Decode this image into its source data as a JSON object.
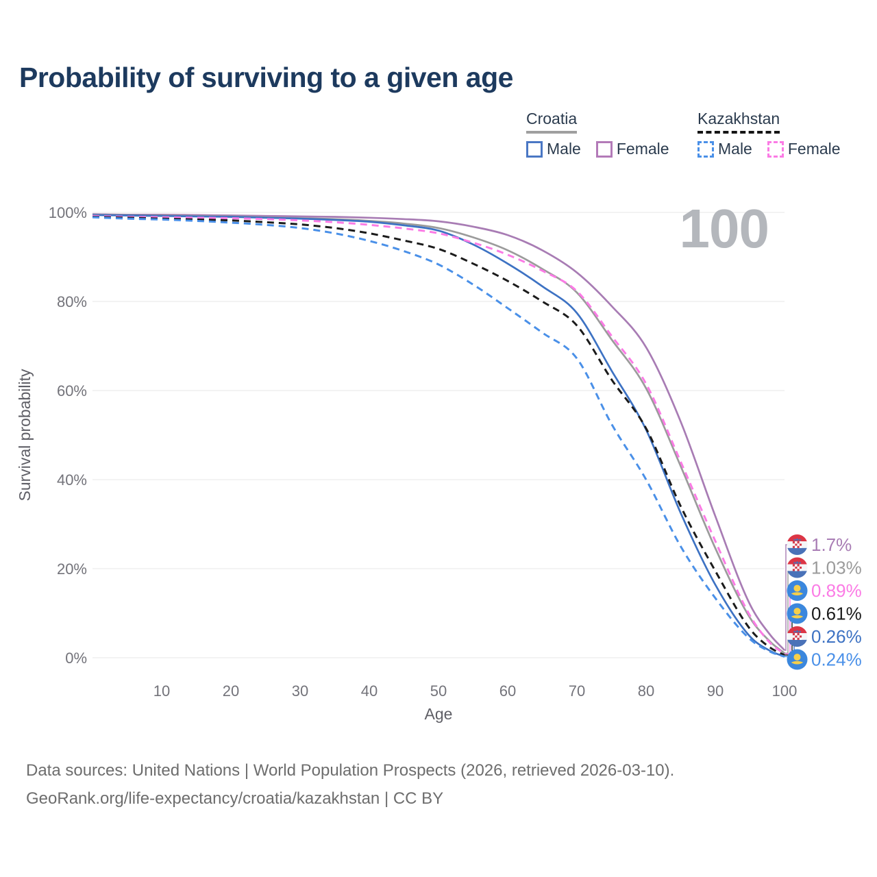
{
  "title": "Probability of surviving to a given age",
  "watermark": "100",
  "legend": {
    "groups": [
      {
        "name": "Croatia",
        "underline_style": "solid",
        "underline_color": "#9f9f9f",
        "items": [
          {
            "label": "Male",
            "color": "#4a77c4",
            "line_style": "solid"
          },
          {
            "label": "Female",
            "color": "#b37ab8",
            "line_style": "solid"
          }
        ]
      },
      {
        "name": "Kazakhstan",
        "underline_style": "dashed",
        "underline_color": "#151515",
        "items": [
          {
            "label": "Male",
            "color": "#4a90e8",
            "line_style": "dashed"
          },
          {
            "label": "Female",
            "color": "#fb7be5",
            "line_style": "dashed"
          }
        ]
      }
    ]
  },
  "chart_data": {
    "type": "line",
    "title": "Probability of surviving to a given age",
    "xlabel": "Age",
    "ylabel": "Survival probability",
    "xlim": [
      0,
      100
    ],
    "ylim": [
      0,
      100
    ],
    "grid": true,
    "x_ticks": [
      "10",
      "20",
      "30",
      "40",
      "50",
      "60",
      "70",
      "80",
      "90",
      "100"
    ],
    "y_ticks": [
      {
        "value": 100,
        "label": "100%"
      },
      {
        "value": 80,
        "label": "80%"
      },
      {
        "value": 60,
        "label": "60%"
      },
      {
        "value": 40,
        "label": "40%"
      },
      {
        "value": 20,
        "label": "20%"
      },
      {
        "value": 0,
        "label": "0%"
      }
    ],
    "x": [
      0,
      5,
      10,
      15,
      20,
      25,
      30,
      35,
      40,
      45,
      50,
      55,
      60,
      65,
      70,
      75,
      80,
      85,
      90,
      95,
      98,
      100
    ],
    "series": [
      {
        "name": "Croatia Female",
        "country": "croatia",
        "sex": "female",
        "color": "#a87cb4",
        "dashed": false,
        "end_label": "1.7%",
        "values": [
          99.6,
          99.5,
          99.5,
          99.4,
          99.3,
          99.2,
          99.1,
          99.0,
          98.8,
          98.5,
          98.0,
          96.8,
          94.9,
          91.5,
          86.5,
          79.0,
          69.7,
          53.0,
          31.8,
          12.0,
          5.0,
          1.7
        ]
      },
      {
        "name": "Croatia",
        "country": "croatia",
        "sex": "all",
        "color": "#9b9b9b",
        "dashed": false,
        "end_label": "1.03%",
        "values": [
          99.5,
          99.4,
          99.3,
          99.2,
          99.1,
          98.9,
          98.7,
          98.5,
          98.1,
          97.5,
          96.5,
          94.4,
          91.5,
          87.3,
          82.0,
          71.5,
          60.5,
          43.0,
          24.6,
          9.0,
          3.5,
          1.03
        ]
      },
      {
        "name": "Kazakhstan Female",
        "country": "kazakhstan",
        "sex": "female",
        "color": "#fb7be5",
        "dashed": true,
        "end_label": "0.89%",
        "values": [
          99.2,
          99.0,
          98.9,
          98.8,
          98.7,
          98.5,
          98.2,
          97.8,
          97.2,
          96.4,
          95.3,
          93.2,
          90.5,
          86.9,
          82.3,
          72.3,
          61.5,
          44.0,
          26.2,
          9.5,
          3.2,
          0.89
        ]
      },
      {
        "name": "Kazakhstan",
        "country": "kazakhstan",
        "sex": "all",
        "color": "#1b1b1b",
        "dashed": true,
        "end_label": "0.61%",
        "values": [
          99.0,
          98.8,
          98.6,
          98.4,
          98.2,
          97.8,
          97.3,
          96.5,
          95.3,
          93.7,
          91.8,
          88.5,
          84.6,
          80.0,
          74.6,
          62.5,
          51.5,
          34.0,
          19.5,
          6.5,
          2.2,
          0.61
        ]
      },
      {
        "name": "Croatia Male",
        "country": "croatia",
        "sex": "male",
        "color": "#3d72c3",
        "dashed": false,
        "end_label": "0.26%",
        "values": [
          99.4,
          99.3,
          99.2,
          99.1,
          99.0,
          98.8,
          98.6,
          98.3,
          97.9,
          97.1,
          95.9,
          92.8,
          88.5,
          83.4,
          77.4,
          64.5,
          51.2,
          32.5,
          16.4,
          4.8,
          1.5,
          0.26
        ]
      },
      {
        "name": "Kazakhstan Male",
        "country": "kazakhstan",
        "sex": "male",
        "color": "#4a90e8",
        "dashed": true,
        "end_label": "0.24%",
        "values": [
          98.9,
          98.6,
          98.4,
          98.1,
          97.7,
          97.2,
          96.5,
          95.3,
          93.6,
          91.3,
          88.3,
          83.8,
          78.5,
          73.0,
          67.2,
          52.5,
          40.0,
          25.0,
          13.4,
          4.2,
          1.3,
          0.24
        ]
      }
    ]
  },
  "footer": {
    "line1": "Data sources: United Nations | World Population Prospects (2026, retrieved 2026-03-10).",
    "line2": "GeoRank.org/life-expectancy/croatia/kazakhstan | CC BY"
  }
}
